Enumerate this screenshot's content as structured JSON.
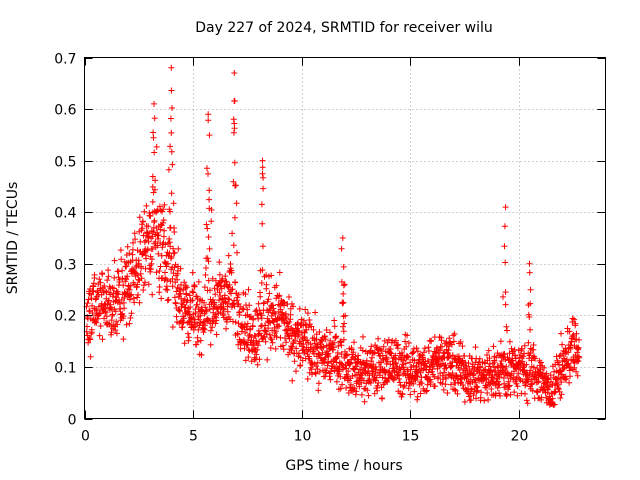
{
  "chart_data": {
    "type": "scatter",
    "title": "Day 227 of 2024, SRMTID for receiver wilu",
    "xlabel": "GPS time / hours",
    "ylabel": "SRMTID / TECUs",
    "xlim": [
      0,
      24
    ],
    "ylim": [
      0,
      0.7
    ],
    "xticks": [
      0,
      5,
      10,
      15,
      20
    ],
    "xtick_labels": [
      "0",
      "5",
      "10",
      "15",
      "20"
    ],
    "yticks": [
      0,
      0.1,
      0.2,
      0.3,
      0.4,
      0.5,
      0.6,
      0.7
    ],
    "ytick_labels": [
      "0",
      "0.1",
      "0.2",
      "0.3",
      "0.4",
      "0.5",
      "0.6",
      "0.7"
    ],
    "grid": true,
    "marker": "+",
    "color": "#ff0000",
    "trend": {
      "x": [
        0,
        0.5,
        1,
        1.5,
        2,
        2.5,
        3,
        3.5,
        4,
        4.5,
        5,
        5.5,
        6,
        6.5,
        7,
        7.5,
        8,
        8.5,
        9,
        9.5,
        10,
        10.5,
        11,
        11.5,
        12,
        12.5,
        13,
        13.5,
        14,
        14.5,
        15,
        15.5,
        16,
        16.5,
        17,
        17.5,
        18,
        18.5,
        19,
        19.5,
        20,
        20.5,
        21,
        21.5,
        22,
        22.5,
        22.8
      ],
      "y": [
        0.19,
        0.21,
        0.23,
        0.22,
        0.26,
        0.3,
        0.36,
        0.33,
        0.3,
        0.22,
        0.21,
        0.2,
        0.22,
        0.24,
        0.22,
        0.17,
        0.16,
        0.2,
        0.2,
        0.16,
        0.15,
        0.13,
        0.12,
        0.13,
        0.11,
        0.09,
        0.09,
        0.1,
        0.11,
        0.1,
        0.1,
        0.09,
        0.11,
        0.12,
        0.1,
        0.09,
        0.08,
        0.08,
        0.09,
        0.1,
        0.1,
        0.09,
        0.08,
        0.05,
        0.1,
        0.14,
        0.12
      ]
    },
    "spread": 0.045,
    "point_count": 2200,
    "peaks": [
      {
        "x": 3.2,
        "y": 0.61
      },
      {
        "x": 4.0,
        "y": 0.68
      },
      {
        "x": 5.7,
        "y": 0.59
      },
      {
        "x": 6.9,
        "y": 0.67
      },
      {
        "x": 8.2,
        "y": 0.5
      },
      {
        "x": 11.9,
        "y": 0.35
      },
      {
        "x": 19.4,
        "y": 0.41
      },
      {
        "x": 20.5,
        "y": 0.3
      }
    ]
  }
}
